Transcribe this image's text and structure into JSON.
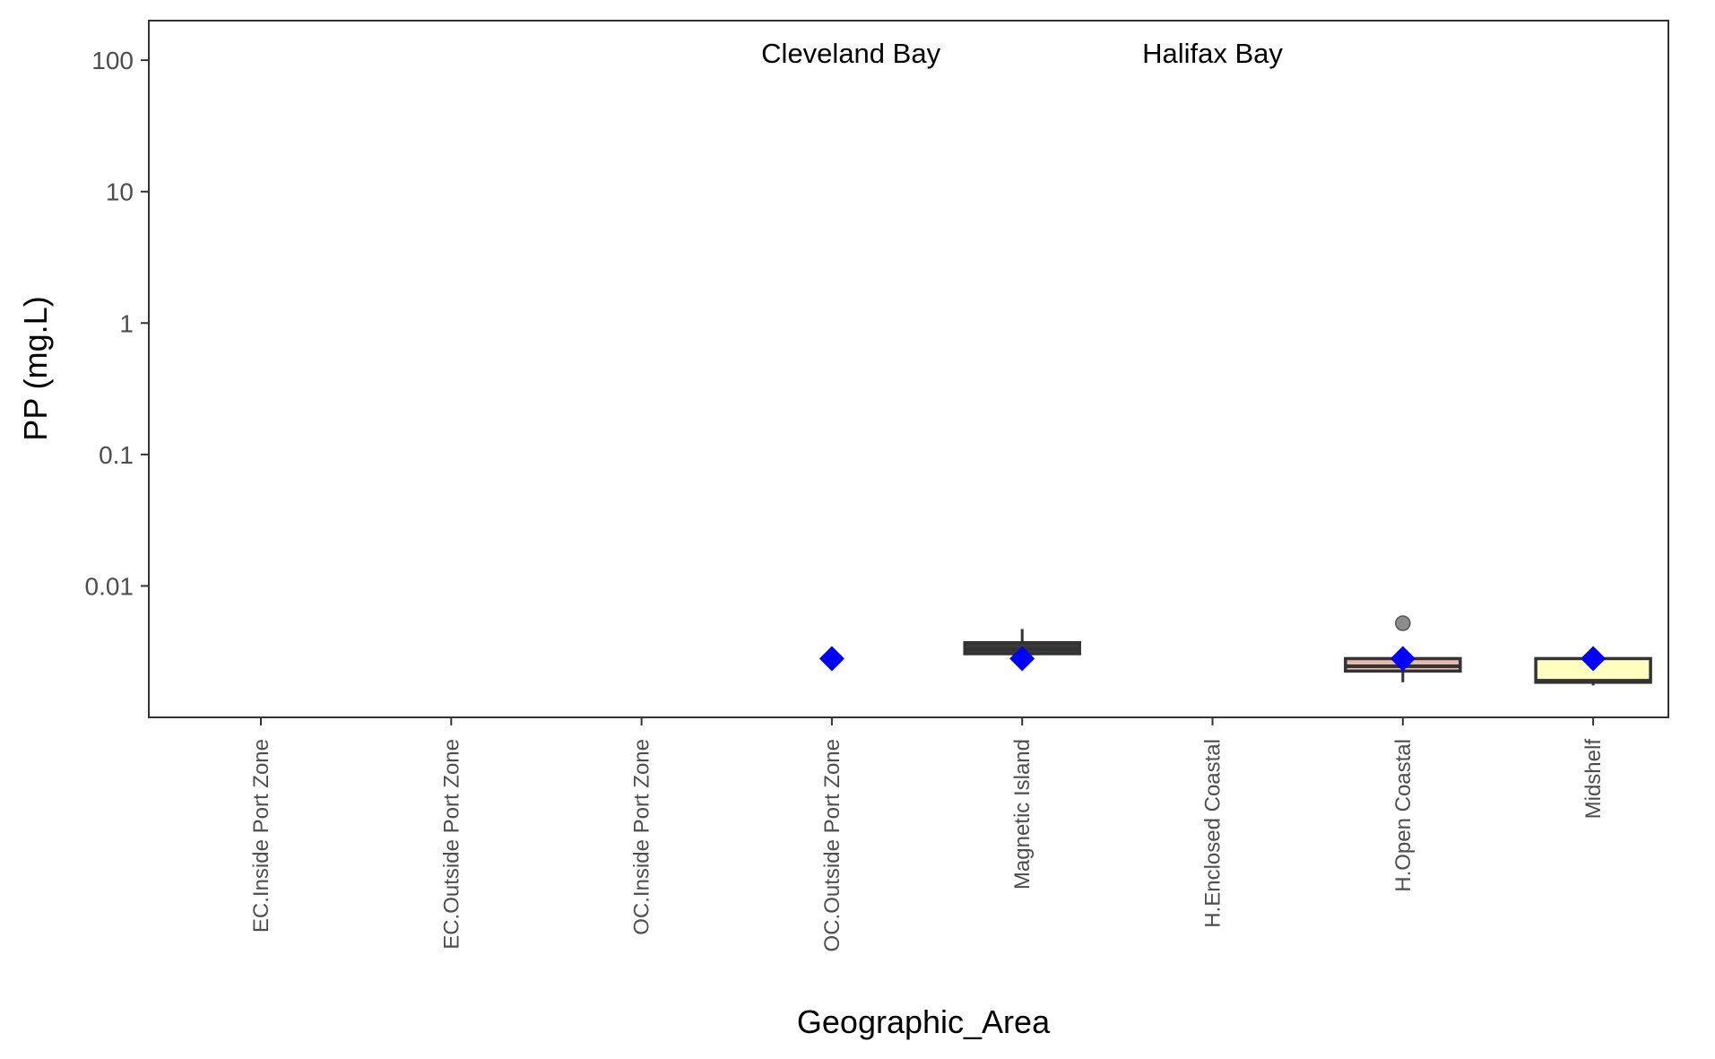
{
  "chart_data": {
    "type": "boxplot",
    "title": "",
    "xlabel": "Geographic_Area",
    "ylabel": "PP (mg.L)",
    "y_scale": "log10",
    "ylim": [
      0.001,
      200
    ],
    "y_ticks": [
      {
        "value": 0.01,
        "label": "0.01"
      },
      {
        "value": 0.1,
        "label": "0.1"
      },
      {
        "value": 1,
        "label": "1"
      },
      {
        "value": 10,
        "label": "10"
      },
      {
        "value": 100,
        "label": "100"
      }
    ],
    "grid": false,
    "categories": [
      "EC.Inside Port Zone",
      "EC.Outside Port Zone",
      "OC.Inside Port Zone",
      "OC.Outside Port Zone",
      "Magnetic Island",
      "H.Enclosed Coastal",
      "H.Open Coastal",
      "Midshelf"
    ],
    "group_labels": [
      {
        "text": "Cleveland Bay",
        "category_index": 3.1
      },
      {
        "text": "Halifax Bay",
        "category_index": 5.0
      }
    ],
    "boxes": [
      {
        "category": "OC.Outside Port Zone",
        "whisker_low": null,
        "q1": null,
        "median": null,
        "q3": null,
        "whisker_high": null,
        "fill": null,
        "outliers": []
      },
      {
        "category": "Magnetic Island",
        "whisker_low": 0.00305,
        "q1": 0.00305,
        "median": 0.0033,
        "q3": 0.0037,
        "whisker_high": 0.0047,
        "fill": "#3a3a3a",
        "outliers": []
      },
      {
        "category": "H.Open Coastal",
        "whisker_low": 0.00185,
        "q1": 0.00225,
        "median": 0.00245,
        "q3": 0.0028,
        "whisker_high": 0.0028,
        "fill": "#e8b8a8",
        "outliers": [
          0.0052
        ]
      },
      {
        "category": "Midshelf",
        "whisker_low": 0.00175,
        "q1": 0.00185,
        "median": 0.0019,
        "q3": 0.0028,
        "whisker_high": 0.0028,
        "fill": "#ffffbf",
        "outliers": []
      }
    ],
    "means": [
      {
        "category": "OC.Outside Port Zone",
        "value": 0.0028
      },
      {
        "category": "Magnetic Island",
        "value": 0.0028
      },
      {
        "category": "H.Open Coastal",
        "value": 0.0028
      },
      {
        "category": "Midshelf",
        "value": 0.0028
      }
    ],
    "colors": {
      "mean_marker": "#0000ff",
      "box_outline": "#333333",
      "outlier": "#7f7f7f",
      "panel_border": "#333333"
    }
  }
}
